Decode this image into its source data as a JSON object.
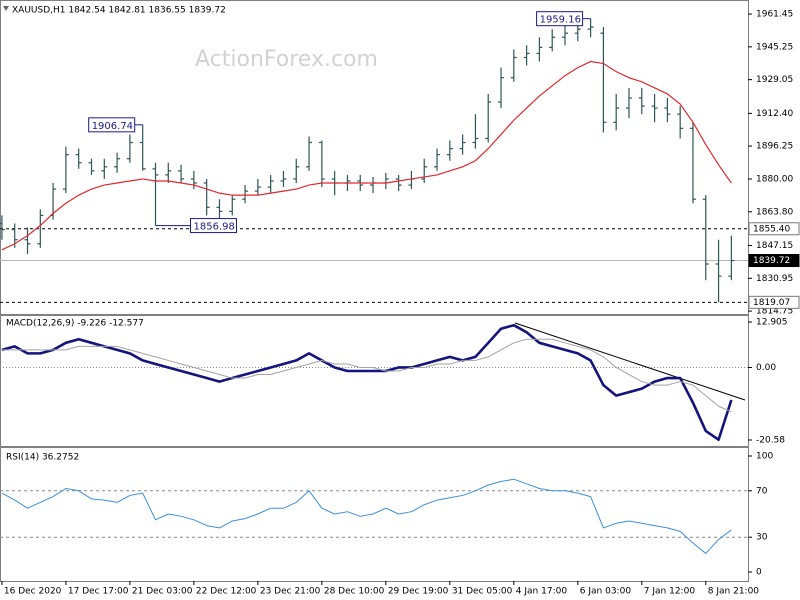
{
  "chart_data": [
    {
      "type": "ohlc",
      "title": "XAUUSD,H1  1842.54 1842.81 1836.55 1839.72",
      "watermark": "ActionForex.com",
      "color": "#2e5656",
      "open": [
        1858,
        1855,
        1850,
        1848,
        1862,
        1875,
        1892,
        1888,
        1884,
        1886,
        1890,
        1898,
        1885,
        1882,
        1884,
        1880,
        1878,
        1866,
        1864,
        1870,
        1874,
        1876,
        1879,
        1880,
        1886,
        1898,
        1880,
        1878,
        1879,
        1877,
        1878,
        1880,
        1877,
        1880,
        1886,
        1892,
        1895,
        1898,
        1900,
        1918,
        1930,
        1940,
        1942,
        1945,
        1950,
        1952,
        1954,
        1952,
        1908,
        1915,
        1920,
        1916,
        1915,
        1912,
        1905,
        1870,
        1838,
        1832
      ],
      "high": [
        1862,
        1858,
        1856,
        1865,
        1878,
        1896,
        1895,
        1890,
        1890,
        1893,
        1902,
        1906.74,
        1888,
        1888,
        1887,
        1884,
        1880,
        1870,
        1872,
        1877,
        1880,
        1882,
        1884,
        1890,
        1901,
        1899,
        1884,
        1882,
        1882,
        1881,
        1883,
        1882,
        1884,
        1890,
        1895,
        1899,
        1902,
        1912,
        1922,
        1935,
        1944,
        1946,
        1950,
        1954,
        1956,
        1958,
        1959.16,
        1955,
        1922,
        1925,
        1925,
        1922,
        1920,
        1916,
        1908,
        1872,
        1850,
        1852
      ],
      "low": [
        1850,
        1846,
        1843,
        1846,
        1860,
        1873,
        1885,
        1882,
        1880,
        1883,
        1888,
        1884,
        1856.98,
        1878,
        1878,
        1875,
        1862,
        1860,
        1862,
        1868,
        1872,
        1873,
        1876,
        1878,
        1884,
        1876,
        1872,
        1874,
        1874,
        1873,
        1875,
        1874,
        1875,
        1878,
        1884,
        1889,
        1892,
        1895,
        1898,
        1915,
        1928,
        1936,
        1938,
        1943,
        1946,
        1948,
        1950,
        1903,
        1904,
        1910,
        1912,
        1908,
        1908,
        1900,
        1868,
        1830,
        1819.07,
        1830
      ],
      "close": [
        1855,
        1850,
        1848,
        1862,
        1875,
        1892,
        1888,
        1884,
        1886,
        1890,
        1898,
        1885,
        1882,
        1884,
        1880,
        1878,
        1866,
        1864,
        1870,
        1874,
        1876,
        1879,
        1880,
        1886,
        1898,
        1880,
        1878,
        1879,
        1877,
        1878,
        1880,
        1877,
        1880,
        1886,
        1892,
        1895,
        1898,
        1900,
        1918,
        1930,
        1940,
        1942,
        1945,
        1950,
        1952,
        1954,
        1955,
        1908,
        1915,
        1920,
        1916,
        1915,
        1912,
        1905,
        1870,
        1838,
        1832,
        1839.72
      ],
      "overlay": {
        "color": "#e3262e",
        "values": [
          1845,
          1848,
          1852,
          1857,
          1863,
          1868,
          1872,
          1875,
          1877,
          1878,
          1879,
          1880,
          1879,
          1879,
          1878,
          1877,
          1875,
          1873,
          1872,
          1872,
          1872,
          1873,
          1874,
          1875,
          1877,
          1878,
          1878,
          1878,
          1878,
          1878,
          1878,
          1879,
          1880,
          1881,
          1882,
          1884,
          1886,
          1889,
          1895,
          1902,
          1909,
          1915,
          1921,
          1926,
          1931,
          1935,
          1938,
          1937,
          1933,
          1930,
          1928,
          1925,
          1922,
          1917,
          1908,
          1897,
          1887,
          1878
        ]
      },
      "ylim": [
        1813.8,
        1967.4
      ],
      "yticks": [
        1961.45,
        1945.25,
        {
          "value": 1929.05,
          "label": "1929.05"
        },
        {
          "value": 1912.4,
          "label": "1912.40"
        },
        1896.25,
        {
          "value": 1880,
          "label": "1880.00"
        },
        {
          "value": 1863.8,
          "label": "1863.80"
        },
        1847.15,
        1830.95,
        1814.75
      ],
      "levels": [
        {
          "value": 1855.4,
          "label": "1855.40",
          "style": "dashed"
        },
        {
          "value": 1839.72,
          "label": "1839.72",
          "style": "current"
        },
        {
          "value": 1819.07,
          "label": "1819.07",
          "style": "dashed"
        }
      ],
      "annotations": [
        {
          "value": 1906.74,
          "label": "1906.74",
          "kind": "high"
        },
        {
          "value": 1856.98,
          "label": "1856.98",
          "kind": "low"
        },
        {
          "value": 1959.16,
          "label": "1959.16",
          "kind": "high"
        }
      ]
    },
    {
      "type": "macd",
      "title": "MACD(12,26,9) -9.226 -12.577",
      "series": [
        {
          "color": "#14147e",
          "width": 2.6,
          "values": [
            5,
            6,
            4,
            4,
            5,
            7,
            8,
            7,
            6,
            5,
            4,
            2,
            1,
            0,
            -1,
            -2,
            -3,
            -4,
            -3,
            -2,
            -1,
            0,
            1,
            2,
            4,
            2,
            0,
            -1,
            -1,
            -1,
            -1,
            0,
            0,
            1,
            2,
            3,
            2,
            3,
            7,
            11,
            12,
            10,
            7,
            6,
            5,
            4,
            2,
            -5,
            -8,
            -7,
            -6,
            -4,
            -3,
            -3,
            -10,
            -18,
            -20.5,
            -9.226
          ]
        },
        {
          "color": "#a3a3a3",
          "width": 1,
          "values": [
            5,
            5,
            5,
            5,
            5,
            5,
            6,
            6,
            6,
            6,
            5,
            4,
            3,
            2,
            1,
            0,
            -1,
            -2,
            -3,
            -3,
            -2,
            -2,
            -1,
            0,
            1,
            2,
            1,
            1,
            0,
            0,
            -1,
            -1,
            0,
            0,
            1,
            1,
            2,
            2,
            3,
            5,
            7,
            8,
            8,
            8,
            7,
            6,
            5,
            3,
            0,
            -2,
            -4,
            -5,
            -5,
            -4,
            -5,
            -8,
            -11,
            -12.577
          ]
        }
      ],
      "ylim": [
        -22,
        14.61
      ],
      "yticks": [
        12.905,
        {
          "value": 0,
          "label": "0.00"
        },
        -20.58
      ],
      "levels": [
        0
      ]
    },
    {
      "type": "rsi",
      "title": "RSI(14) 36.2752",
      "series": [
        {
          "color": "#3d8fe0",
          "width": 1,
          "values": [
            68,
            62,
            55,
            60,
            65,
            72,
            70,
            63,
            62,
            60,
            66,
            68,
            45,
            50,
            48,
            45,
            40,
            38,
            44,
            46,
            50,
            55,
            55,
            60,
            70,
            55,
            50,
            52,
            48,
            50,
            55,
            50,
            52,
            58,
            62,
            64,
            66,
            70,
            75,
            78,
            80,
            76,
            72,
            70,
            70,
            68,
            65,
            38,
            42,
            44,
            42,
            40,
            38,
            35,
            25,
            16,
            28,
            36.2752
          ]
        }
      ],
      "ylim": [
        -6.9,
        106.9
      ],
      "yticks": [
        100,
        70,
        30,
        0
      ],
      "levels": [
        70,
        30
      ],
      "xlim": [
        -0.15,
        58.3
      ],
      "xticks": [
        {
          "value": 0,
          "label": "16 Dec 2020"
        },
        {
          "value": 5,
          "label": "17 Dec 17:00"
        },
        {
          "value": 10,
          "label": "21 Dec 03:00"
        },
        {
          "value": 15,
          "label": "22 Dec 12:00"
        },
        {
          "value": 20,
          "label": "23 Dec 21:00"
        },
        {
          "value": 25,
          "label": "28 Dec 10:00"
        },
        {
          "value": 30,
          "label": "29 Dec 19:00"
        },
        {
          "value": 35,
          "label": "31 Dec 05:00"
        },
        {
          "value": 40,
          "label": "4 Jan 17:00"
        },
        {
          "value": 45,
          "label": "6 Jan 03:00"
        },
        {
          "value": 50,
          "label": "7 Jan 12:00"
        },
        {
          "value": 55,
          "label": "8 Jan 21:00"
        }
      ]
    }
  ]
}
